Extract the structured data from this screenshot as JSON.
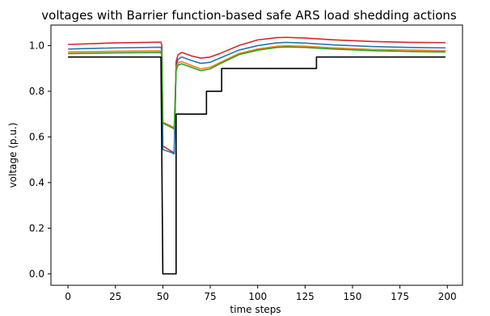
{
  "chart_data": {
    "type": "line",
    "title": "voltages with Barrier function-based safe ARS load shedding actions",
    "xlabel": "time steps",
    "ylabel": "voltage (p.u.)",
    "xlim": [
      -9,
      208
    ],
    "ylim": [
      -0.05,
      1.09
    ],
    "xticks": [
      0,
      25,
      50,
      75,
      100,
      125,
      150,
      175,
      200
    ],
    "yticks": [
      0.0,
      0.2,
      0.4,
      0.6,
      0.8,
      1.0
    ],
    "ytick_labels": [
      "0.0",
      "0.2",
      "0.4",
      "0.6",
      "0.8",
      "1.0"
    ],
    "grid": false,
    "legend": "none",
    "series": [
      {
        "color": "#d62728",
        "points": [
          [
            0,
            1.005
          ],
          [
            25,
            1.012
          ],
          [
            49,
            1.015
          ],
          [
            49.5,
            1.0
          ],
          [
            50,
            0.56
          ],
          [
            55,
            0.535
          ],
          [
            56,
            0.53
          ],
          [
            57,
            0.93
          ],
          [
            58,
            0.96
          ],
          [
            60,
            0.97
          ],
          [
            65,
            0.955
          ],
          [
            70,
            0.945
          ],
          [
            75,
            0.95
          ],
          [
            80,
            0.965
          ],
          [
            90,
            1.0
          ],
          [
            100,
            1.025
          ],
          [
            110,
            1.035
          ],
          [
            115,
            1.036
          ],
          [
            125,
            1.033
          ],
          [
            140,
            1.025
          ],
          [
            160,
            1.018
          ],
          [
            180,
            1.014
          ],
          [
            199,
            1.013
          ]
        ]
      },
      {
        "color": "#1f77b4",
        "points": [
          [
            0,
            0.985
          ],
          [
            25,
            0.99
          ],
          [
            49,
            0.993
          ],
          [
            49.5,
            0.98
          ],
          [
            50,
            0.545
          ],
          [
            55,
            0.53
          ],
          [
            56,
            0.525
          ],
          [
            57,
            0.91
          ],
          [
            58,
            0.94
          ],
          [
            60,
            0.95
          ],
          [
            65,
            0.935
          ],
          [
            70,
            0.922
          ],
          [
            75,
            0.927
          ],
          [
            80,
            0.945
          ],
          [
            90,
            0.98
          ],
          [
            100,
            1.0
          ],
          [
            110,
            1.012
          ],
          [
            115,
            1.014
          ],
          [
            125,
            1.011
          ],
          [
            140,
            1.003
          ],
          [
            160,
            0.996
          ],
          [
            180,
            0.992
          ],
          [
            199,
            0.99
          ]
        ]
      },
      {
        "color": "#ff7f0e",
        "points": [
          [
            0,
            0.972
          ],
          [
            25,
            0.975
          ],
          [
            49,
            0.977
          ],
          [
            49.5,
            0.96
          ],
          [
            50,
            0.665
          ],
          [
            55,
            0.645
          ],
          [
            56,
            0.64
          ],
          [
            57,
            0.9
          ],
          [
            58,
            0.925
          ],
          [
            60,
            0.93
          ],
          [
            65,
            0.913
          ],
          [
            70,
            0.898
          ],
          [
            75,
            0.905
          ],
          [
            80,
            0.925
          ],
          [
            90,
            0.965
          ],
          [
            100,
            0.985
          ],
          [
            110,
            0.997
          ],
          [
            115,
            0.999
          ],
          [
            125,
            0.997
          ],
          [
            140,
            0.99
          ],
          [
            160,
            0.983
          ],
          [
            180,
            0.98
          ],
          [
            199,
            0.978
          ]
        ]
      },
      {
        "color": "#2ca02c",
        "points": [
          [
            0,
            0.965
          ],
          [
            25,
            0.968
          ],
          [
            49,
            0.97
          ],
          [
            49.5,
            0.955
          ],
          [
            50,
            0.66
          ],
          [
            55,
            0.64
          ],
          [
            56,
            0.635
          ],
          [
            57,
            0.89
          ],
          [
            58,
            0.915
          ],
          [
            60,
            0.92
          ],
          [
            65,
            0.905
          ],
          [
            70,
            0.89
          ],
          [
            75,
            0.898
          ],
          [
            80,
            0.92
          ],
          [
            90,
            0.96
          ],
          [
            100,
            0.98
          ],
          [
            110,
            0.992
          ],
          [
            115,
            0.994
          ],
          [
            125,
            0.992
          ],
          [
            140,
            0.985
          ],
          [
            160,
            0.978
          ],
          [
            180,
            0.974
          ],
          [
            199,
            0.972
          ]
        ]
      },
      {
        "color": "#000000",
        "points": [
          [
            0,
            0.95
          ],
          [
            49,
            0.95
          ],
          [
            50,
            0.0
          ],
          [
            56,
            0.0
          ],
          [
            57,
            0.0
          ],
          [
            57,
            0.7
          ],
          [
            73,
            0.7
          ],
          [
            73,
            0.8
          ],
          [
            80,
            0.8
          ],
          [
            81,
            0.8
          ],
          [
            81,
            0.9
          ],
          [
            131,
            0.9
          ],
          [
            131,
            0.95
          ],
          [
            199,
            0.95
          ]
        ]
      }
    ]
  }
}
